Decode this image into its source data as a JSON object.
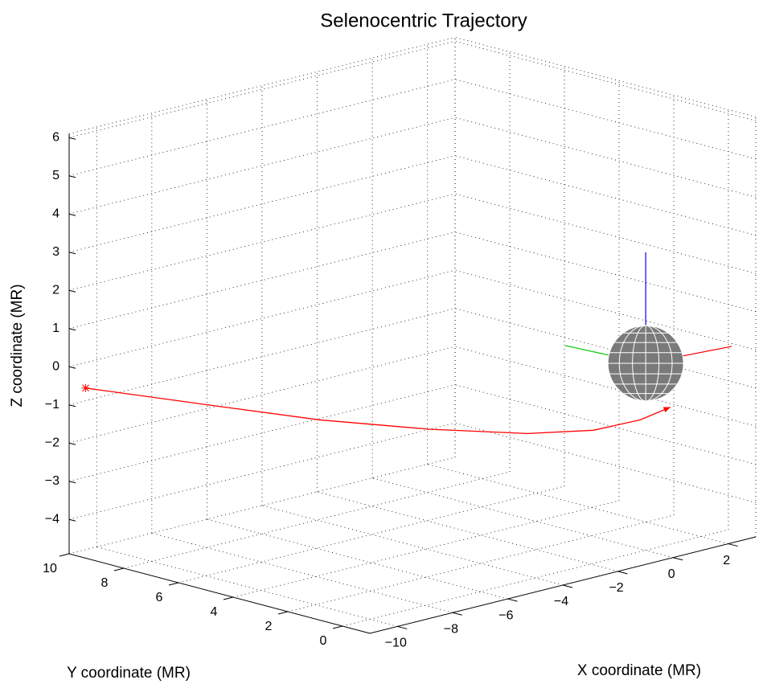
{
  "chart_data": {
    "type": "line3d",
    "title": "Selenocentric Trajectory",
    "xlabel": "X coordinate (MR)",
    "ylabel": "Y coordinate (MR)",
    "zlabel": "Z coordinate (MR)",
    "xlim": [
      -11,
      3
    ],
    "ylim": [
      -1,
      10
    ],
    "zlim": [
      -4.9,
      6.1
    ],
    "xticks": [
      {
        "value": -10,
        "label": "−10"
      },
      {
        "value": -8,
        "label": "−8"
      },
      {
        "value": -6,
        "label": "−6"
      },
      {
        "value": -4,
        "label": "−4"
      },
      {
        "value": -2,
        "label": "−2"
      },
      0,
      2
    ],
    "yticks": [
      0,
      2,
      4,
      6,
      8,
      10
    ],
    "zticks": [
      {
        "value": -4,
        "label": "−4"
      },
      {
        "value": -3,
        "label": "−3"
      },
      {
        "value": -2,
        "label": "−2"
      },
      {
        "value": -1,
        "label": "−1"
      },
      0,
      1,
      2,
      3,
      4,
      5,
      6
    ],
    "grid": true,
    "series": [
      {
        "color": "#ff0000",
        "x": [
          -10.5,
          -8.5,
          -6.5,
          -4.5,
          -2.5,
          -1.2,
          -0.3,
          0.3
        ],
        "y": [
          9.9,
          7.6,
          5.4,
          3.4,
          1.8,
          0.7,
          -0.1,
          -0.6
        ],
        "z": [
          -0.63,
          -0.98,
          -1.33,
          -1.56,
          -1.73,
          -1.67,
          -1.41,
          -1.09
        ]
      }
    ]
  }
}
